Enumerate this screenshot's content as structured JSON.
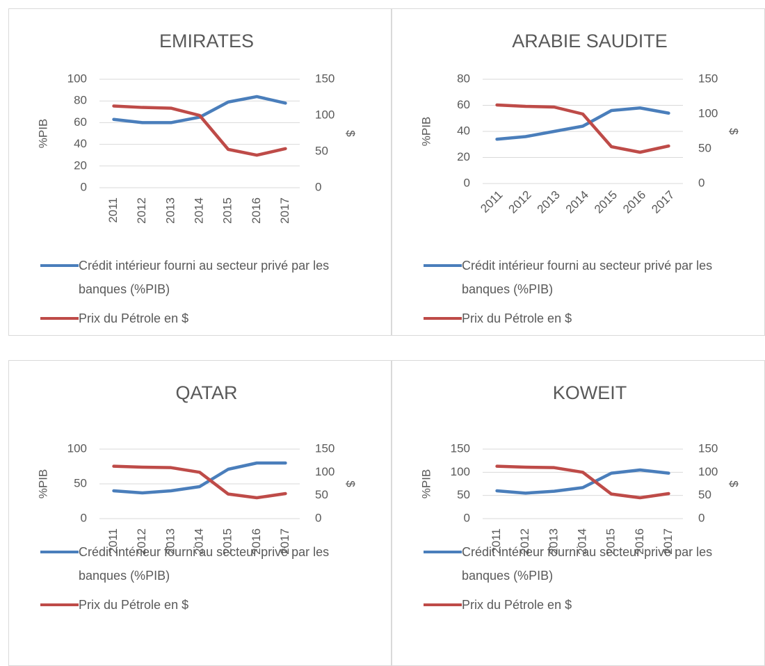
{
  "chart_data": [
    {
      "type": "line",
      "title": "EMIRATES",
      "ylabel": "%PIB",
      "y2label": "$",
      "categories": [
        "2011",
        "2012",
        "2013",
        "2014",
        "2015",
        "2016",
        "2017"
      ],
      "ylim": [
        0,
        100
      ],
      "yticks": [
        0,
        20,
        40,
        60,
        80,
        100
      ],
      "y2lim": [
        0,
        150
      ],
      "y2ticks": [
        0,
        50,
        100,
        150
      ],
      "grid": true,
      "x_label_rotation": -90,
      "series": [
        {
          "name": "Crédit intérieur fourni au secteur privé par les banques (%PIB)",
          "color": "#4a7ebb",
          "values": [
            63,
            60,
            60,
            65,
            79,
            84,
            78
          ]
        },
        {
          "name": "Prix du Pétrole en $",
          "color": "#be4b48",
          "axis": "y2",
          "values": [
            113,
            111,
            110,
            100,
            53,
            45,
            54
          ]
        }
      ]
    },
    {
      "type": "line",
      "title": "ARABIE SAUDITE",
      "ylabel": "%PIB",
      "y2label": "$",
      "categories": [
        "2011",
        "2012",
        "2013",
        "2014",
        "2015",
        "2016",
        "2017"
      ],
      "ylim": [
        0,
        80
      ],
      "yticks": [
        0,
        20,
        40,
        60,
        80
      ],
      "y2lim": [
        0,
        150
      ],
      "y2ticks": [
        0,
        50,
        100,
        150
      ],
      "grid": true,
      "x_label_rotation": -45,
      "series": [
        {
          "name": "Crédit intérieur fourni au secteur privé par les banques (%PIB)",
          "color": "#4a7ebb",
          "values": [
            34,
            36,
            40,
            44,
            56,
            58,
            54
          ]
        },
        {
          "name": "Prix du Pétrole en $",
          "color": "#be4b48",
          "axis": "y2",
          "values": [
            113,
            111,
            110,
            100,
            53,
            45,
            54
          ]
        }
      ]
    },
    {
      "type": "line",
      "title": "QATAR",
      "ylabel": "%PIB",
      "y2label": "$",
      "categories": [
        "2011",
        "2012",
        "2013",
        "2014",
        "2015",
        "2016",
        "2017"
      ],
      "ylim": [
        0,
        100
      ],
      "yticks": [
        0,
        50,
        100
      ],
      "y2lim": [
        0,
        150
      ],
      "y2ticks": [
        0,
        50,
        100,
        150
      ],
      "grid": true,
      "x_label_rotation": -90,
      "series": [
        {
          "name": "Crédit intérieur fourni au secteur privé par les banques (%PIB)",
          "color": "#4a7ebb",
          "values": [
            40,
            37,
            40,
            46,
            71,
            80,
            80
          ]
        },
        {
          "name": "Prix du Pétrole en $",
          "color": "#be4b48",
          "axis": "y2",
          "values": [
            113,
            111,
            110,
            100,
            53,
            45,
            54
          ]
        }
      ]
    },
    {
      "type": "line",
      "title": "KOWEIT",
      "ylabel": "%PIB",
      "y2label": "$",
      "categories": [
        "2011",
        "2012",
        "2013",
        "2014",
        "2015",
        "2016",
        "2017"
      ],
      "ylim": [
        0,
        150
      ],
      "yticks": [
        0,
        50,
        100,
        150
      ],
      "y2lim": [
        0,
        150
      ],
      "y2ticks": [
        0,
        50,
        100,
        150
      ],
      "grid": true,
      "x_label_rotation": -90,
      "series": [
        {
          "name": "Crédit intérieur fourni au secteur privé par les banques (%PIB)",
          "color": "#4a7ebb",
          "values": [
            60,
            55,
            59,
            67,
            98,
            105,
            98
          ]
        },
        {
          "name": "Prix du Pétrole en $",
          "color": "#be4b48",
          "axis": "y2",
          "values": [
            113,
            111,
            110,
            100,
            53,
            45,
            54
          ]
        }
      ]
    }
  ]
}
